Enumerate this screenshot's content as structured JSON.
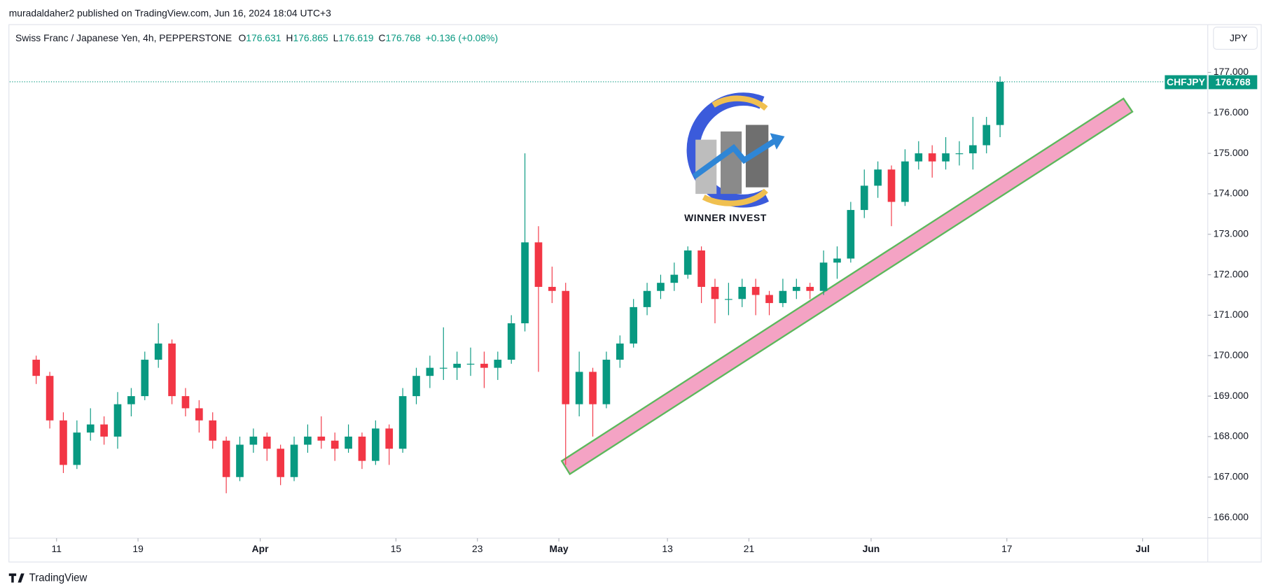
{
  "header": {
    "publisher": "muradaldaher2 published on TradingView.com, Jun 16, 2024 18:04 UTC+3",
    "brand": "TradingView",
    "currency_button": "JPY"
  },
  "chart_data": {
    "type": "candlestick",
    "title": "Swiss Franc / Japanese Yen, 4h, PEPPERSTONE",
    "ohlc": [
      {
        "label": "O",
        "value": 176.631
      },
      {
        "label": "H",
        "value": 176.865
      },
      {
        "label": "L",
        "value": 176.619
      },
      {
        "label": "C",
        "value": 176.768
      }
    ],
    "change": "+0.136 (+0.08%)",
    "symbol": "CHFJPY",
    "last_price": {
      "value": 176.768,
      "label": "176.768"
    },
    "annotation": "WINNER INVEST",
    "up_color": "#089981",
    "down_color": "#f23645",
    "candles": [
      [
        169.9,
        170.0,
        169.3,
        169.5
      ],
      [
        169.5,
        169.6,
        168.2,
        168.4
      ],
      [
        168.4,
        168.6,
        167.1,
        167.3
      ],
      [
        167.3,
        168.4,
        167.2,
        168.1
      ],
      [
        168.1,
        168.7,
        167.9,
        168.3
      ],
      [
        168.3,
        168.5,
        167.8,
        168.0
      ],
      [
        168.0,
        169.1,
        167.7,
        168.8
      ],
      [
        168.8,
        169.2,
        168.5,
        169.0
      ],
      [
        169.0,
        170.1,
        168.9,
        169.9
      ],
      [
        169.9,
        170.8,
        169.7,
        170.3
      ],
      [
        170.3,
        170.4,
        168.8,
        169.0
      ],
      [
        169.0,
        169.2,
        168.5,
        168.7
      ],
      [
        168.7,
        168.9,
        168.1,
        168.4
      ],
      [
        168.4,
        168.6,
        167.7,
        167.9
      ],
      [
        167.9,
        168.0,
        166.6,
        167.0
      ],
      [
        167.0,
        168.0,
        166.9,
        167.8
      ],
      [
        167.8,
        168.2,
        167.6,
        168.0
      ],
      [
        168.0,
        168.1,
        167.4,
        167.7
      ],
      [
        167.7,
        167.8,
        166.8,
        167.0
      ],
      [
        167.0,
        168.0,
        166.9,
        167.8
      ],
      [
        167.8,
        168.3,
        167.6,
        168.0
      ],
      [
        168.0,
        168.5,
        167.7,
        167.9
      ],
      [
        167.9,
        168.1,
        167.4,
        167.7
      ],
      [
        167.7,
        168.3,
        167.6,
        168.0
      ],
      [
        168.0,
        168.1,
        167.2,
        167.4
      ],
      [
        167.4,
        168.4,
        167.3,
        168.2
      ],
      [
        168.2,
        168.3,
        167.3,
        167.7
      ],
      [
        167.7,
        169.2,
        167.6,
        169.0
      ],
      [
        169.0,
        169.7,
        168.8,
        169.5
      ],
      [
        169.5,
        170.0,
        169.2,
        169.7
      ],
      [
        169.7,
        170.7,
        169.4,
        169.7
      ],
      [
        169.7,
        170.1,
        169.4,
        169.8
      ],
      [
        169.8,
        170.2,
        169.5,
        169.8
      ],
      [
        169.8,
        170.1,
        169.2,
        169.7
      ],
      [
        169.7,
        170.1,
        169.4,
        169.9
      ],
      [
        169.9,
        171.0,
        169.8,
        170.8
      ],
      [
        170.8,
        175.0,
        170.6,
        172.8
      ],
      [
        172.8,
        173.2,
        169.6,
        171.7
      ],
      [
        171.7,
        172.2,
        171.3,
        171.6
      ],
      [
        171.6,
        171.8,
        167.3,
        168.8
      ],
      [
        168.8,
        170.1,
        168.5,
        169.6
      ],
      [
        169.6,
        169.7,
        168.0,
        168.8
      ],
      [
        168.8,
        170.1,
        168.7,
        169.9
      ],
      [
        169.9,
        170.5,
        169.7,
        170.3
      ],
      [
        170.3,
        171.4,
        170.2,
        171.2
      ],
      [
        171.2,
        171.8,
        171.0,
        171.6
      ],
      [
        171.6,
        172.0,
        171.4,
        171.8
      ],
      [
        171.8,
        172.3,
        171.6,
        172.0
      ],
      [
        172.0,
        172.7,
        171.9,
        172.6
      ],
      [
        172.6,
        172.7,
        171.3,
        171.7
      ],
      [
        171.7,
        171.9,
        170.8,
        171.4
      ],
      [
        171.4,
        171.8,
        171.0,
        171.4
      ],
      [
        171.4,
        171.9,
        171.2,
        171.7
      ],
      [
        171.7,
        171.9,
        171.0,
        171.5
      ],
      [
        171.5,
        171.6,
        171.0,
        171.3
      ],
      [
        171.3,
        171.9,
        171.2,
        171.6
      ],
      [
        171.6,
        171.9,
        171.4,
        171.7
      ],
      [
        171.7,
        171.8,
        171.4,
        171.6
      ],
      [
        171.6,
        172.6,
        171.5,
        172.3
      ],
      [
        172.3,
        172.7,
        171.9,
        172.4
      ],
      [
        172.4,
        173.8,
        172.3,
        173.6
      ],
      [
        173.6,
        174.6,
        173.4,
        174.2
      ],
      [
        174.2,
        174.8,
        173.9,
        174.6
      ],
      [
        174.6,
        174.7,
        173.2,
        173.8
      ],
      [
        173.8,
        175.1,
        173.7,
        174.8
      ],
      [
        174.8,
        175.3,
        174.6,
        175.0
      ],
      [
        175.0,
        175.2,
        174.4,
        174.8
      ],
      [
        174.8,
        175.4,
        174.6,
        175.0
      ],
      [
        175.0,
        175.3,
        174.7,
        175.0
      ],
      [
        175.0,
        175.9,
        174.6,
        175.2
      ],
      [
        175.2,
        175.9,
        175.0,
        175.7
      ],
      [
        175.7,
        176.9,
        175.4,
        176.768
      ]
    ],
    "xlim": [
      -1.45,
      86.8
    ],
    "xticks": [
      {
        "value": 2,
        "label": "11"
      },
      {
        "value": 8,
        "label": "19"
      },
      {
        "value": 17,
        "label": "Apr"
      },
      {
        "value": 27,
        "label": "15"
      },
      {
        "value": 33,
        "label": "23"
      },
      {
        "value": 39,
        "label": "May"
      },
      {
        "value": 47,
        "label": "13"
      },
      {
        "value": 53,
        "label": "21"
      },
      {
        "value": 62,
        "label": "Jun"
      },
      {
        "value": 72,
        "label": "17"
      },
      {
        "value": 82,
        "label": "Jul"
      }
    ],
    "ylim": [
      165.49,
      178.18
    ],
    "yticks": [
      {
        "value": 166,
        "label": "166.000"
      },
      {
        "value": 167,
        "label": "167.000"
      },
      {
        "value": 168,
        "label": "168.000"
      },
      {
        "value": 169,
        "label": "169.000"
      },
      {
        "value": 170,
        "label": "170.000"
      },
      {
        "value": 171,
        "label": "171.000"
      },
      {
        "value": 172,
        "label": "172.000"
      },
      {
        "value": 173,
        "label": "173.000"
      },
      {
        "value": 174,
        "label": "174.000"
      },
      {
        "value": 175,
        "label": "175.000"
      },
      {
        "value": 176,
        "label": "176.000"
      },
      {
        "value": 177,
        "label": "177.000"
      }
    ]
  }
}
